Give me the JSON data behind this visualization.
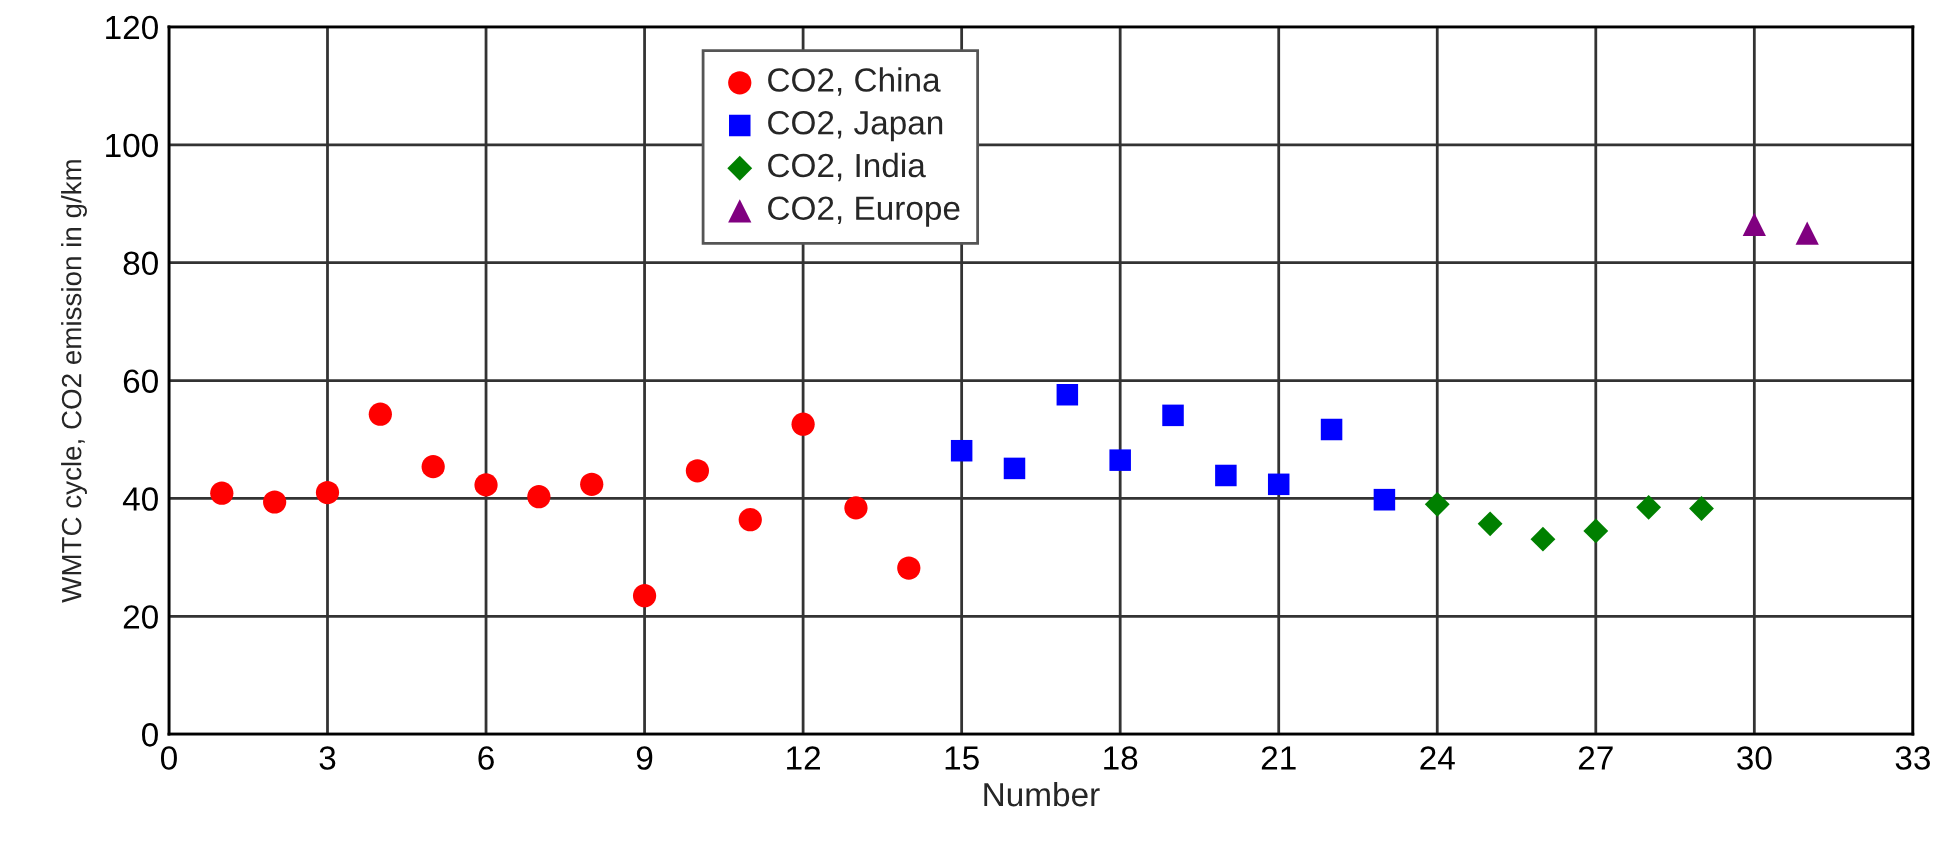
{
  "chart_data": {
    "type": "scatter",
    "xlabel": "Number",
    "ylabel": "WMTC cycle, CO2 emission in g/km",
    "xlim": [
      0,
      33
    ],
    "xticks": [
      0,
      3,
      6,
      9,
      12,
      15,
      18,
      21,
      24,
      27,
      30,
      33
    ],
    "ylim": [
      0,
      120
    ],
    "yticks": [
      0,
      20,
      40,
      60,
      80,
      100,
      120
    ],
    "grid": true,
    "legend": "top",
    "series": [
      {
        "name": "CO2, China",
        "color": "#ff0000",
        "marker": "circle",
        "x": [
          1,
          2,
          3,
          4,
          5,
          6,
          7,
          8,
          9,
          10,
          11,
          12,
          13,
          14
        ],
        "values": [
          40.9,
          39.4,
          41.0,
          54.3,
          45.4,
          42.3,
          40.3,
          42.4,
          23.5,
          44.7,
          36.4,
          52.6,
          38.4,
          28.2
        ]
      },
      {
        "name": "CO2, Japan",
        "color": "#0000ff",
        "marker": "square",
        "x": [
          15,
          16,
          17,
          18,
          19,
          20,
          21,
          22,
          23
        ],
        "values": [
          48.1,
          45.1,
          57.6,
          46.5,
          54.1,
          43.9,
          42.4,
          51.7,
          39.8
        ]
      },
      {
        "name": "CO2, India",
        "color": "#008000",
        "marker": "diamond",
        "x": [
          24,
          25,
          26,
          27,
          28,
          29
        ],
        "values": [
          39.0,
          35.7,
          33.1,
          34.5,
          38.5,
          38.3
        ]
      },
      {
        "name": "CO2, Europe",
        "color": "#800080",
        "marker": "triangle",
        "x": [
          30,
          31
        ],
        "values": [
          86.5,
          85.0
        ]
      }
    ]
  }
}
